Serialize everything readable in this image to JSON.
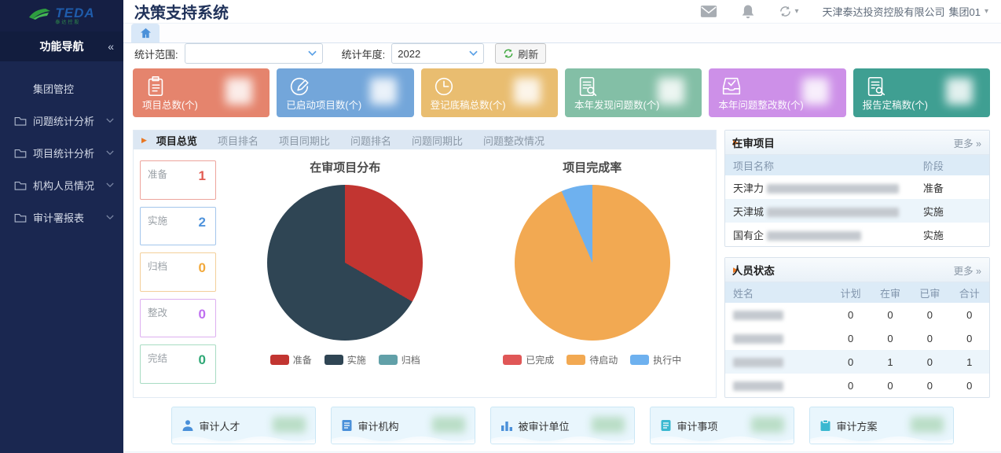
{
  "logo": {
    "brand": "TEDA",
    "sub": "泰达控股"
  },
  "header": {
    "title": "决策支持系统",
    "company": "天津泰达投资控股有限公司",
    "org_unit": "集团01"
  },
  "icons": {
    "collapse": "«",
    "caret_down": "▾",
    "panel_marker": "▶",
    "more_arrow": "»"
  },
  "sidebar": {
    "nav_title": "功能导航",
    "items": [
      {
        "label": "集团管控",
        "has_folder": false,
        "expandable": false
      },
      {
        "label": "问题统计分析",
        "has_folder": true,
        "expandable": true
      },
      {
        "label": "项目统计分析",
        "has_folder": true,
        "expandable": true
      },
      {
        "label": "机构人员情况",
        "has_folder": true,
        "expandable": true
      },
      {
        "label": "审计署报表",
        "has_folder": true,
        "expandable": true
      }
    ]
  },
  "filters": {
    "scope_label": "统计范围:",
    "scope_value": "",
    "year_label": "统计年度:",
    "year_value": "2022",
    "refresh_label": "刷新"
  },
  "stat_cards": [
    {
      "label": "项目总数(个)",
      "color": "#e5846d",
      "icon": "clipboard-list-icon",
      "value_redacted": true
    },
    {
      "label": "已启动项目数(个)",
      "color": "#73a6da",
      "icon": "edit-circle-icon",
      "value_redacted": true
    },
    {
      "label": "登记底稿总数(个)",
      "color": "#e9bd70",
      "icon": "clock-icon",
      "value_redacted": true
    },
    {
      "label": "本年发现问题数(个)",
      "color": "#83bfa6",
      "icon": "doc-search-icon",
      "value_redacted": true
    },
    {
      "label": "本年问题整改数(个)",
      "color": "#cd90e8",
      "icon": "inbox-check-icon",
      "value_redacted": true
    },
    {
      "label": "报告定稿数(个)",
      "color": "#3f9f92",
      "icon": "doc-config-icon",
      "value_redacted": true
    }
  ],
  "tabs": [
    {
      "label": "项目总览",
      "active": true
    },
    {
      "label": "项目排名",
      "active": false
    },
    {
      "label": "项目同期比",
      "active": false
    },
    {
      "label": "问题排名",
      "active": false
    },
    {
      "label": "问题同期比",
      "active": false
    },
    {
      "label": "问题整改情况",
      "active": false
    }
  ],
  "status_boxes": [
    {
      "label": "准备",
      "value": "1",
      "color": "#e25b52",
      "border": "#eda49c"
    },
    {
      "label": "实施",
      "value": "2",
      "color": "#4f93dc",
      "border": "#a3c6ec"
    },
    {
      "label": "归档",
      "value": "0",
      "color": "#f2a93b",
      "border": "#f3cf9a"
    },
    {
      "label": "整改",
      "value": "0",
      "color": "#bf6ff0",
      "border": "#ddaff0"
    },
    {
      "label": "完结",
      "value": "0",
      "color": "#2fa876",
      "border": "#a8dcc3"
    }
  ],
  "chart_data": [
    {
      "type": "pie",
      "title": "在审项目分布",
      "labels": [
        "准备",
        "实施",
        "归档"
      ],
      "values": [
        1,
        2,
        0
      ],
      "percentages": [
        33.3,
        66.7,
        0
      ],
      "colors": [
        "#c23531",
        "#2f4554",
        "#61a0a8"
      ],
      "legend_position": "bottom",
      "start_angle_deg": 0,
      "direction": "clockwise"
    },
    {
      "type": "pie",
      "title": "项目完成率",
      "labels": [
        "已完成",
        "待启动",
        "执行中"
      ],
      "values": [
        0,
        93.5,
        6.5
      ],
      "percentages": [
        0,
        93.5,
        6.5
      ],
      "colors": [
        "#e05757",
        "#f2a952",
        "#6eb1ef"
      ],
      "legend_position": "bottom",
      "start_angle_deg": 0,
      "direction": "clockwise"
    }
  ],
  "panels": {
    "projects": {
      "title": "在审项目",
      "more_label": "更多 »",
      "columns": [
        "项目名称",
        "阶段"
      ],
      "rows": [
        {
          "name_prefix": "天津力",
          "name_redacted": true,
          "redact_size": "long",
          "stage": "准备"
        },
        {
          "name_prefix": "天津城",
          "name_redacted": true,
          "redact_size": "long",
          "stage": "实施"
        },
        {
          "name_prefix": "国有企",
          "name_redacted": true,
          "redact_size": "medium",
          "stage": "实施"
        }
      ]
    },
    "personnel": {
      "title": "人员状态",
      "more_label": "更多 »",
      "columns": [
        "姓名",
        "计划",
        "在审",
        "已审",
        "合计"
      ],
      "rows": [
        {
          "name_redacted": true,
          "values": [
            "0",
            "0",
            "0",
            "0"
          ]
        },
        {
          "name_redacted": true,
          "values": [
            "0",
            "0",
            "0",
            "0"
          ]
        },
        {
          "name_redacted": true,
          "values": [
            "0",
            "1",
            "0",
            "1"
          ]
        },
        {
          "name_redacted": true,
          "values": [
            "0",
            "0",
            "0",
            "0"
          ]
        }
      ]
    }
  },
  "bottom_cards": [
    {
      "label": "审计人才",
      "icon": "person-icon",
      "icon_color": "#4a90d9",
      "value_redacted": true
    },
    {
      "label": "审计机构",
      "icon": "document-icon",
      "icon_color": "#4a90d9",
      "value_redacted": true
    },
    {
      "label": "被审计单位",
      "icon": "bar-chart-icon",
      "icon_color": "#4a90d9",
      "value_redacted": true
    },
    {
      "label": "审计事项",
      "icon": "document-lines-icon",
      "icon_color": "#3bb8d0",
      "value_redacted": true
    },
    {
      "label": "审计方案",
      "icon": "clipboard-icon",
      "icon_color": "#3bb8d0",
      "value_redacted": true
    }
  ]
}
